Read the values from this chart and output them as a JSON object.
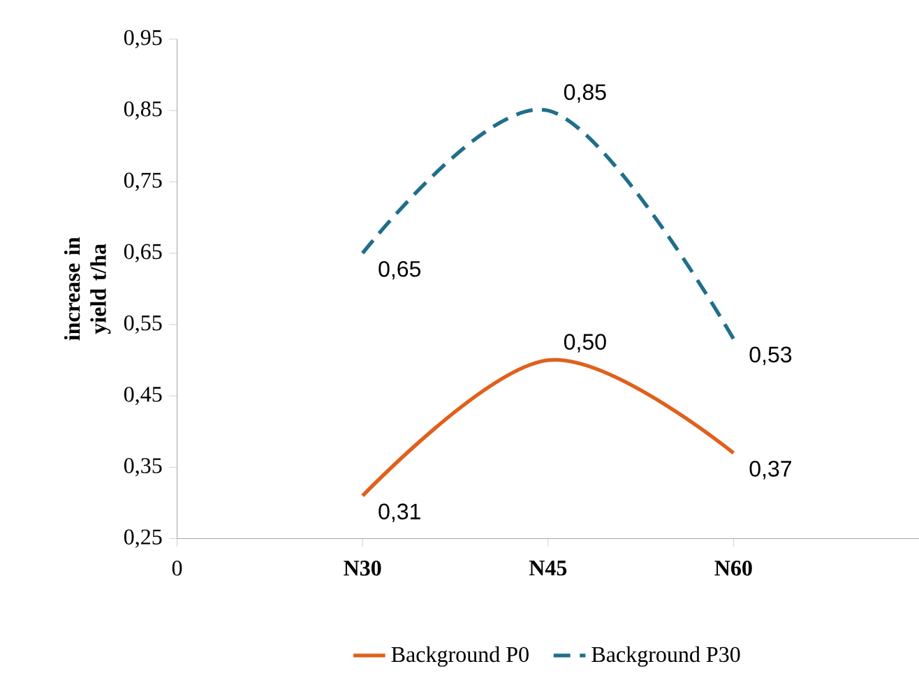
{
  "chart_data": {
    "type": "line",
    "ylabel": "increase in yield t/ha",
    "categories": [
      "0",
      "N30",
      "N45",
      "N60",
      null
    ],
    "ylim": [
      0.25,
      0.95
    ],
    "yticks": [
      {
        "value": 0.25,
        "label": "0,25"
      },
      {
        "value": 0.35,
        "label": "0,35"
      },
      {
        "value": 0.45,
        "label": "0,45"
      },
      {
        "value": 0.55,
        "label": "0,55"
      },
      {
        "value": 0.65,
        "label": "0,65"
      },
      {
        "value": 0.75,
        "label": "0,75"
      },
      {
        "value": 0.85,
        "label": "0,85"
      },
      {
        "value": 0.95,
        "label": "0,95"
      }
    ],
    "grid": false,
    "legend": "bottom",
    "marker": "none",
    "series": [
      {
        "name": "Background P0",
        "color": "#e0601c",
        "line_style": "solid",
        "values": [
          null,
          0.31,
          0.5,
          0.37,
          null
        ],
        "value_labels": [
          null,
          "0,31",
          "0,50",
          "0,37",
          null
        ]
      },
      {
        "name": "Background P30",
        "color": "#1f6f8b",
        "line_style": "dashed",
        "values": [
          null,
          0.65,
          0.85,
          0.53,
          null
        ],
        "value_labels": [
          null,
          "0,65",
          "0,85",
          "0,53",
          null
        ]
      }
    ]
  }
}
